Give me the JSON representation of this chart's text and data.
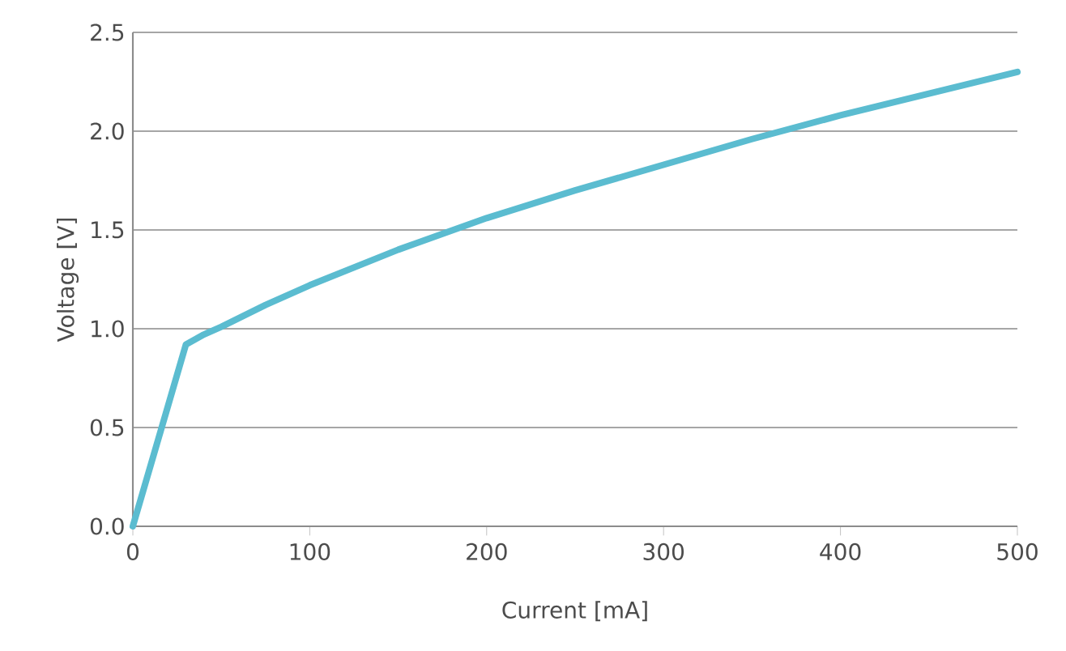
{
  "chart_data": {
    "type": "line",
    "xlabel": "Current [mA]",
    "ylabel": "Voltage [V]",
    "x": [
      0,
      30,
      40,
      50,
      75,
      100,
      150,
      200,
      250,
      300,
      350,
      400,
      450,
      500
    ],
    "series": [
      {
        "color": "#5bbcd0",
        "values": [
          0,
          0.92,
          0.97,
          1.01,
          1.12,
          1.22,
          1.4,
          1.56,
          1.7,
          1.83,
          1.96,
          2.08,
          2.19,
          2.3
        ]
      }
    ],
    "xlim": [
      0,
      500
    ],
    "ylim": [
      0,
      2.5
    ],
    "xticks": [
      0,
      100,
      200,
      300,
      400,
      500
    ],
    "yticks": [
      {
        "value": 0,
        "label": "0.0"
      },
      {
        "value": 0.5,
        "label": "0.5"
      },
      {
        "value": 1,
        "label": "1.0"
      },
      {
        "value": 1.5,
        "label": "1.5"
      },
      {
        "value": 2,
        "label": "2.0"
      },
      {
        "value": 2.5,
        "label": "2.5"
      }
    ],
    "grid": "y"
  }
}
